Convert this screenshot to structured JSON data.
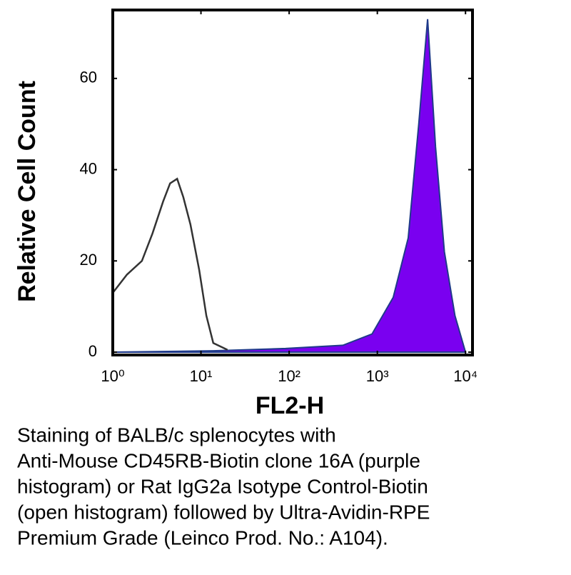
{
  "chart_data": {
    "type": "histogram-overlay",
    "x_label": "FL2-H",
    "y_label": "Relative Cell Count",
    "x_log": true,
    "xlim": [
      1,
      12000
    ],
    "ylim": [
      0,
      75
    ],
    "xticks": [
      {
        "value": 1,
        "label": "10⁰"
      },
      {
        "value": 10,
        "label": "10¹"
      },
      {
        "value": 100,
        "label": "10²"
      },
      {
        "value": 1000,
        "label": "10³"
      },
      {
        "value": 10000,
        "label": "10⁴"
      }
    ],
    "yticks": [
      0,
      20,
      40,
      60
    ],
    "series": [
      {
        "color": "#7a00f0",
        "edge_color": "#1f3a8a",
        "filled": true,
        "x": [
          1,
          13.8,
          91,
          407,
          871,
          1514,
          2239,
          2951,
          3715,
          4571,
          5754,
          7586,
          10000
        ],
        "values": [
          0,
          0.3,
          0.8,
          1.5,
          4,
          12,
          25,
          50,
          73,
          45,
          22,
          8,
          0
        ]
      },
      {
        "color": "#333333",
        "filled": false,
        "x": [
          1,
          1.45,
          2.14,
          2.82,
          3.72,
          4.47,
          5.37,
          6.31,
          7.59,
          9.55,
          11.5,
          13.8,
          20
        ],
        "values": [
          13,
          17,
          20,
          26,
          33,
          37,
          38,
          34,
          28,
          18,
          8,
          2,
          0.5
        ]
      }
    ],
    "caption_lines": [
      "Staining of BALB/c splenocytes with",
      "Anti-Mouse CD45RB-Biotin clone 16A (purple",
      "histogram) or Rat IgG2a Isotype Control-Biotin",
      "(open histogram) followed by Ultra-Avidin-RPE",
      "Premium Grade (Leinco Prod. No.: A104)."
    ]
  }
}
